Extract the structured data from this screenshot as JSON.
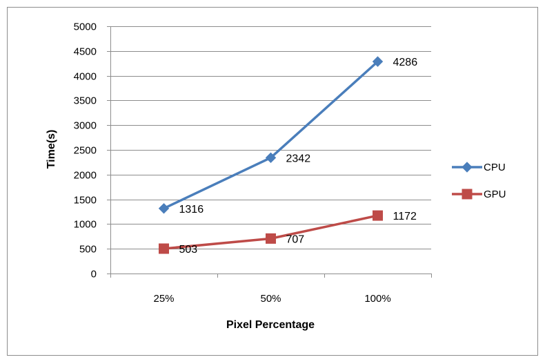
{
  "chart_data": {
    "type": "line",
    "title": "",
    "xlabel": "Pixel Percentage",
    "ylabel": "Time(s)",
    "categories": [
      "25%",
      "50%",
      "100%"
    ],
    "ylim": [
      0,
      5000
    ],
    "yticks": [
      "0",
      "500",
      "1000",
      "1500",
      "2000",
      "2500",
      "3000",
      "3500",
      "4000",
      "4500",
      "5000"
    ],
    "grid": true,
    "legend_position": "right",
    "series": [
      {
        "name": "CPU",
        "values": [
          1316,
          2342,
          4286
        ],
        "labels": [
          "1316",
          "2342",
          "4286"
        ],
        "color": "#4a7ebb",
        "marker": "diamond"
      },
      {
        "name": "GPU",
        "values": [
          503,
          707,
          1172
        ],
        "labels": [
          "503",
          "707",
          "1172"
        ],
        "color": "#be4b48",
        "marker": "square"
      }
    ]
  }
}
